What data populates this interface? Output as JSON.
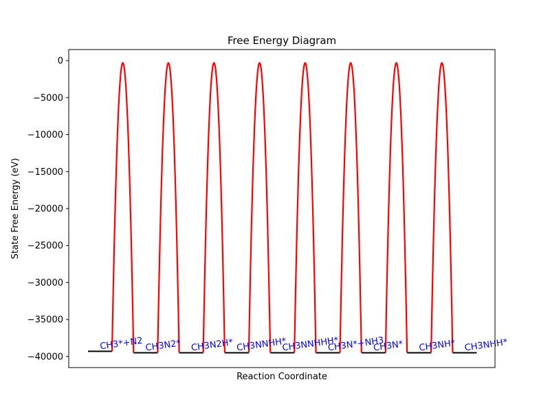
{
  "chart_data": {
    "type": "line",
    "title": "Free Energy Diagram",
    "xlabel": "Reaction Coordinate",
    "ylabel": "State Free Energy (eV)",
    "ylim": [
      -41500,
      1500
    ],
    "yticks": [
      0,
      -5000,
      -10000,
      -15000,
      -20000,
      -25000,
      -30000,
      -35000,
      -40000
    ],
    "ytick_labels": [
      "0",
      "−5000",
      "−10000",
      "−15000",
      "−20000",
      "−25000",
      "−30000",
      "−35000",
      "−40000"
    ],
    "grid": false,
    "states": [
      {
        "label": "CH3*+N2",
        "energy": -39300
      },
      {
        "label": "CH3N2*",
        "energy": -39500
      },
      {
        "label": "CH3N2H*",
        "energy": -39500
      },
      {
        "label": "CH3NNHH*",
        "energy": -39500
      },
      {
        "label": "CH3NNHHH*",
        "energy": -39500
      },
      {
        "label": "CH3N*+NH3",
        "energy": -39500
      },
      {
        "label": "CH3N*",
        "energy": -39500
      },
      {
        "label": "CH3NH*",
        "energy": -39500
      },
      {
        "label": "CH3NHH*",
        "energy": -39500
      }
    ],
    "barriers": [
      {
        "from": "CH3*+N2",
        "to": "CH3N2*",
        "peak": -300
      },
      {
        "from": "CH3N2*",
        "to": "CH3N2H*",
        "peak": -300
      },
      {
        "from": "CH3N2H*",
        "to": "CH3NNHH*",
        "peak": -300
      },
      {
        "from": "CH3NNHH*",
        "to": "CH3NNHHH*",
        "peak": -300
      },
      {
        "from": "CH3NNHHH*",
        "to": "CH3N*+NH3",
        "peak": -300
      },
      {
        "from": "CH3N*+NH3",
        "to": "CH3N*",
        "peak": -300
      },
      {
        "from": "CH3N*",
        "to": "CH3NH*",
        "peak": -300
      },
      {
        "from": "CH3NH*",
        "to": "CH3NHH*",
        "peak": -300
      }
    ],
    "colors": {
      "state_line": "#000000",
      "barrier_line": "#ff0000",
      "state_label": "#0000ff"
    }
  }
}
